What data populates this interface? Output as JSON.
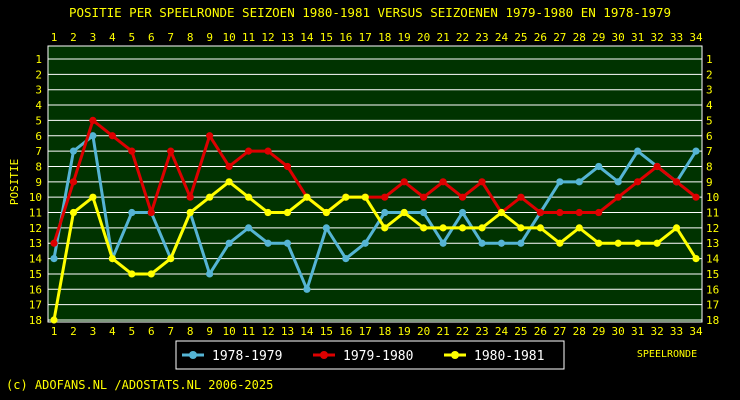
{
  "chart_data": {
    "type": "line",
    "title": "POSITIE PER SPEELRONDE SEIZOEN 1980-1981 VERSUS SEIZOENEN 1979-1980 EN 1978-1979",
    "ylabel": "POSITIE",
    "xlabel": "SPEELRONDE",
    "footer": "(c) ADOFANS.NL /ADOSTATS.NL 2006-2025",
    "x": [
      1,
      2,
      3,
      4,
      5,
      6,
      7,
      8,
      9,
      10,
      11,
      12,
      13,
      14,
      15,
      16,
      17,
      18,
      19,
      20,
      21,
      22,
      23,
      24,
      25,
      26,
      27,
      28,
      29,
      30,
      31,
      32,
      33,
      34
    ],
    "ylim": [
      1,
      18
    ],
    "y_inverted": true,
    "y_ticks": [
      1,
      2,
      3,
      4,
      5,
      6,
      7,
      8,
      9,
      10,
      11,
      12,
      13,
      14,
      15,
      16,
      17,
      18
    ],
    "grid": true,
    "legend_position": "bottom",
    "colors": {
      "background": "#000000",
      "plot_background": "#003300",
      "grid": "#ffffff",
      "text": "#ffff00",
      "border": "#ffffff"
    },
    "series": [
      {
        "name": "1978-1979",
        "color": "#55b4d4",
        "values": [
          14,
          7,
          6,
          14,
          11,
          11,
          14,
          11,
          15,
          13,
          12,
          13,
          13,
          16,
          12,
          14,
          13,
          11,
          11,
          11,
          13,
          11,
          13,
          13,
          13,
          11,
          9,
          9,
          8,
          9,
          7,
          8,
          9,
          7
        ]
      },
      {
        "name": "1979-1980",
        "color": "#dd0000",
        "values": [
          13,
          9,
          5,
          6,
          7,
          11,
          7,
          10,
          6,
          8,
          7,
          7,
          8,
          10,
          11,
          10,
          10,
          10,
          9,
          10,
          9,
          10,
          9,
          11,
          10,
          11,
          11,
          11,
          11,
          10,
          9,
          8,
          9,
          10
        ]
      },
      {
        "name": "1980-1981",
        "color": "#ffff00",
        "values": [
          18,
          11,
          10,
          14,
          15,
          15,
          14,
          11,
          10,
          9,
          10,
          11,
          11,
          10,
          11,
          10,
          10,
          12,
          11,
          12,
          12,
          12,
          12,
          11,
          12,
          12,
          13,
          12,
          13,
          13,
          13,
          13,
          12,
          14
        ]
      }
    ]
  }
}
